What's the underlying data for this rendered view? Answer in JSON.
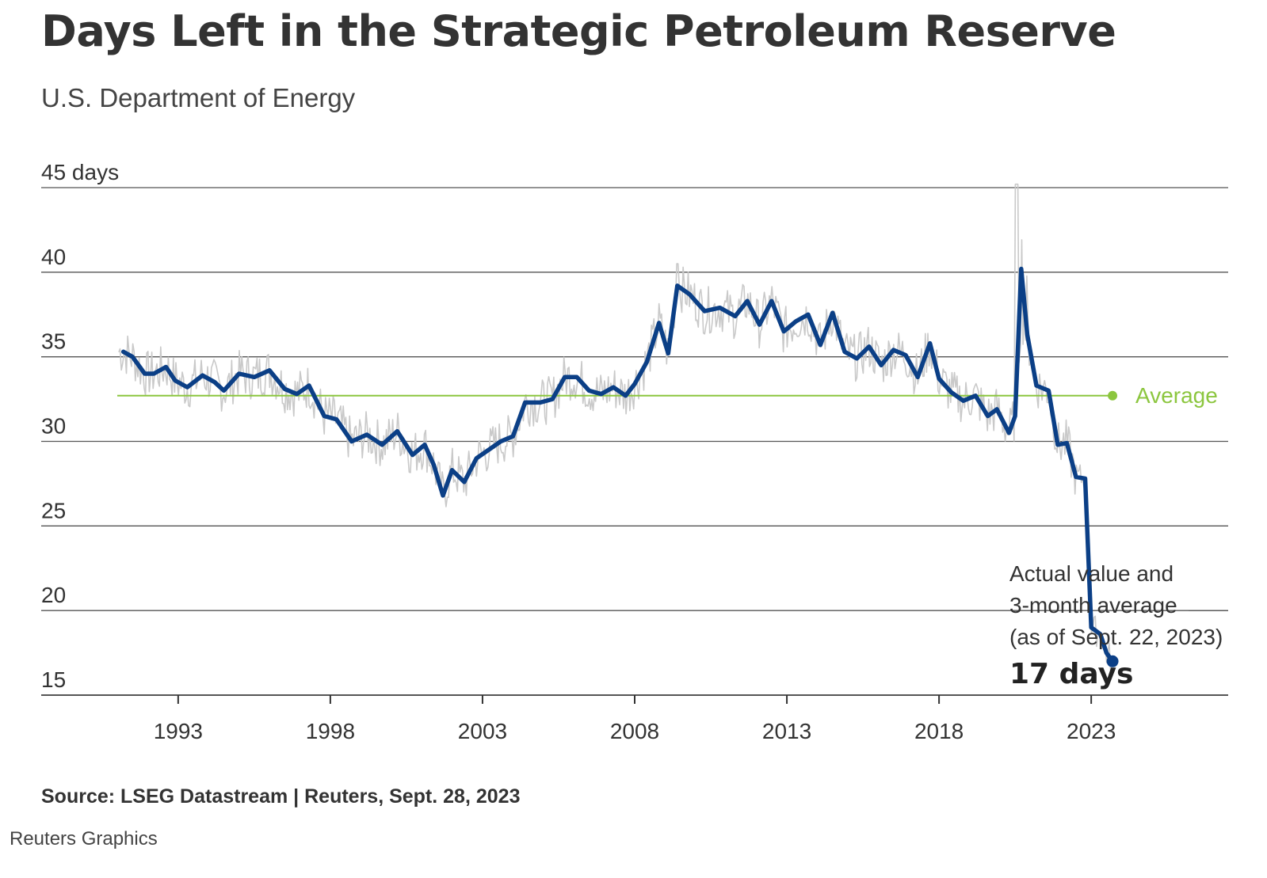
{
  "header": {
    "title": "Days Left in the Strategic Petroleum Reserve",
    "subtitle": "U.S. Department of Energy"
  },
  "footer": {
    "source": "Source: LSEG Datastream | Reuters, Sept. 28, 2023",
    "credit": "Reuters Graphics"
  },
  "colors": {
    "smooth_line": "#0b3f86",
    "raw_line": "#c9c9c9",
    "average_line": "#8cc63f",
    "grid": "#555555"
  },
  "chart_data": {
    "type": "line",
    "title": "Days Left in the Strategic Petroleum Reserve",
    "xlabel": "",
    "ylabel": "",
    "xlim": [
      1988.5,
      2027.5
    ],
    "ylim": [
      15,
      45
    ],
    "yticks": [
      {
        "value": 45,
        "label": "45 days"
      },
      {
        "value": 40,
        "label": "40"
      },
      {
        "value": 35,
        "label": "35"
      },
      {
        "value": 30,
        "label": "30"
      },
      {
        "value": 25,
        "label": "25"
      },
      {
        "value": 20,
        "label": "20"
      },
      {
        "value": 15,
        "label": "15"
      }
    ],
    "xticks": [
      {
        "value": 1993,
        "label": "1993"
      },
      {
        "value": 1998,
        "label": "1998"
      },
      {
        "value": 2003,
        "label": "2003"
      },
      {
        "value": 2008,
        "label": "2008"
      },
      {
        "value": 2013,
        "label": "2013"
      },
      {
        "value": 2018,
        "label": "2018"
      },
      {
        "value": 2023,
        "label": "2023"
      }
    ],
    "grid": true,
    "average": {
      "value": 32.7,
      "start": 1991.0,
      "end": 2023.7,
      "label": "Average"
    },
    "series": [
      {
        "name": "3-month average",
        "x": [
          1991.2,
          1991.5,
          1991.9,
          1992.2,
          1992.6,
          1992.9,
          1993.3,
          1993.8,
          1994.2,
          1994.5,
          1995.0,
          1995.5,
          1996.0,
          1996.5,
          1996.9,
          1997.3,
          1997.8,
          1998.2,
          1998.7,
          1999.2,
          1999.7,
          2000.2,
          2000.7,
          2001.1,
          2001.4,
          2001.7,
          2002.0,
          2002.4,
          2002.8,
          2003.2,
          2003.6,
          2004.0,
          2004.4,
          2004.9,
          2005.3,
          2005.7,
          2006.1,
          2006.5,
          2006.9,
          2007.3,
          2007.7,
          2008.0,
          2008.4,
          2008.8,
          2009.1,
          2009.4,
          2009.8,
          2010.3,
          2010.8,
          2011.3,
          2011.7,
          2012.1,
          2012.5,
          2012.9,
          2013.3,
          2013.7,
          2014.1,
          2014.5,
          2014.9,
          2015.3,
          2015.7,
          2016.1,
          2016.5,
          2016.9,
          2017.3,
          2017.7,
          2018.0,
          2018.4,
          2018.8,
          2019.2,
          2019.6,
          2019.9,
          2020.3,
          2020.5,
          2020.7,
          2020.9,
          2021.2,
          2021.6,
          2021.9,
          2022.2,
          2022.5,
          2022.8,
          2023.0,
          2023.3,
          2023.5,
          2023.7
        ],
        "y": [
          35.3,
          35.0,
          34.0,
          34.0,
          34.4,
          33.6,
          33.2,
          33.9,
          33.5,
          33.0,
          34.0,
          33.8,
          34.2,
          33.1,
          32.8,
          33.3,
          31.5,
          31.3,
          30.0,
          30.4,
          29.8,
          30.6,
          29.2,
          29.8,
          28.6,
          26.8,
          28.3,
          27.6,
          29.0,
          29.5,
          30.0,
          30.3,
          32.3,
          32.3,
          32.5,
          33.8,
          33.8,
          33.0,
          32.8,
          33.2,
          32.7,
          33.4,
          34.7,
          37.0,
          35.2,
          39.2,
          38.7,
          37.7,
          37.9,
          37.4,
          38.3,
          36.9,
          38.3,
          36.5,
          37.1,
          37.5,
          35.7,
          37.6,
          35.3,
          34.9,
          35.6,
          34.5,
          35.4,
          35.1,
          33.8,
          35.8,
          33.7,
          32.9,
          32.4,
          32.7,
          31.5,
          31.9,
          30.5,
          31.5,
          40.2,
          36.3,
          33.3,
          33.0,
          29.8,
          29.9,
          27.9,
          27.8,
          19.0,
          18.6,
          17.5,
          17.0
        ]
      },
      {
        "name": "Actual value",
        "type": "raw",
        "approximate": true
      }
    ],
    "annotations": [
      {
        "lines": [
          "Actual value and",
          "3-month average",
          "(as of Sept. 22, 2023)"
        ]
      },
      {
        "text": "17 days",
        "x": 2023.7,
        "y": 17
      }
    ]
  }
}
